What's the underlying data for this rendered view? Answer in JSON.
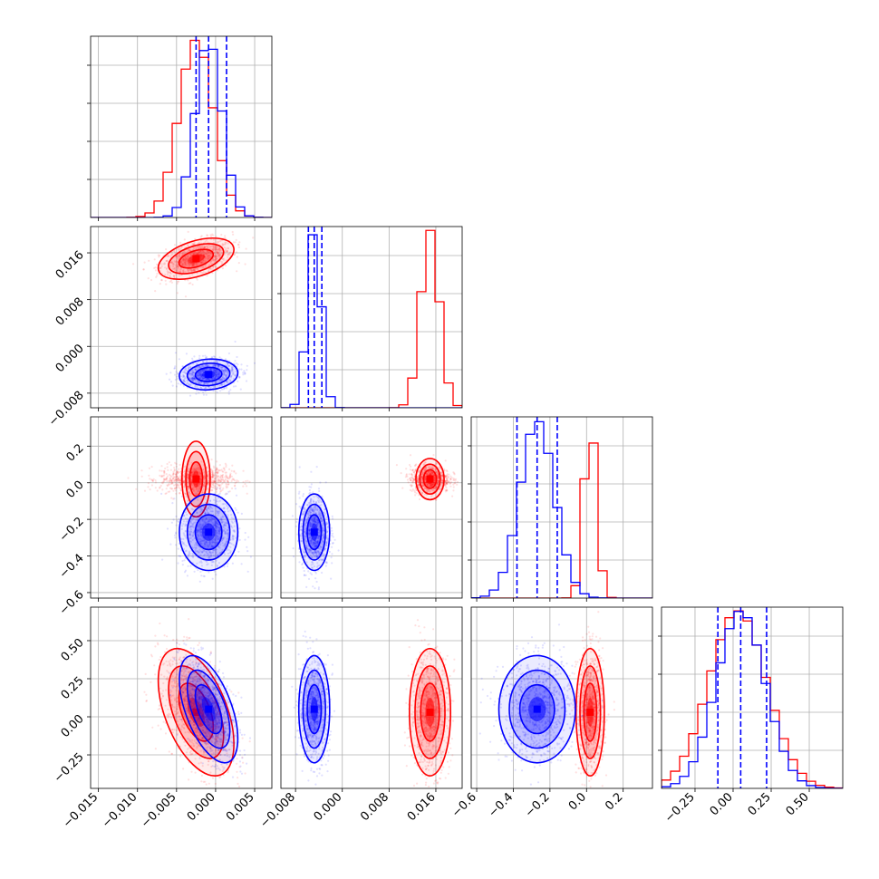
{
  "chart_data": {
    "type": "corner",
    "grid": true,
    "parameters": [
      {
        "range": [
          -0.016,
          0.0072
        ],
        "ticks": [
          -0.015,
          -0.01,
          -0.005,
          0.0,
          0.005
        ],
        "tick_labels": [
          "−0.015",
          "−0.010",
          "−0.005",
          "0.000",
          "0.005"
        ]
      },
      {
        "range": [
          -0.0105,
          0.0205
        ],
        "ticks": [
          -0.008,
          0.0,
          0.008,
          0.016
        ],
        "tick_labels": [
          "−0.008",
          "0.000",
          "0.008",
          "0.016"
        ]
      },
      {
        "range": [
          -0.63,
          0.36
        ],
        "ticks": [
          -0.6,
          -0.4,
          -0.2,
          0.0,
          0.2
        ],
        "tick_labels": [
          "−0.6",
          "−0.4",
          "−0.2",
          "0.0",
          "0.2"
        ]
      },
      {
        "range": [
          -0.47,
          0.72
        ],
        "ticks": [
          -0.25,
          0.0,
          0.25,
          0.5
        ],
        "tick_labels": [
          "−0.25",
          "0.00",
          "0.25",
          "0.50"
        ]
      }
    ],
    "series": [
      {
        "color": "#ff0000",
        "means": [
          -0.0025,
          0.015,
          0.02,
          0.03
        ],
        "sigmas": [
          0.0022,
          0.0016,
          0.035,
          0.19
        ],
        "corr": [
          [
            1,
            0.45,
            0,
            -0.5
          ],
          [
            0.45,
            1,
            0,
            0
          ],
          [
            0,
            0,
            1,
            0
          ],
          [
            -0.5,
            0,
            0,
            1
          ]
        ],
        "quantiles": []
      },
      {
        "color": "#0000ff",
        "means": [
          -0.0009,
          -0.0048,
          -0.27,
          0.05
        ],
        "sigmas": [
          0.0017,
          0.0012,
          0.095,
          0.16
        ],
        "corr": [
          [
            1,
            0.1,
            0,
            -0.55
          ],
          [
            0.1,
            1,
            0,
            0
          ],
          [
            0,
            0,
            1,
            0
          ],
          [
            -0.55,
            0,
            0,
            1
          ]
        ],
        "quantiles": [
          [
            -0.0025,
            -0.0009,
            0.0014
          ],
          [
            -0.0058,
            -0.0048,
            -0.0035
          ],
          [
            -0.38,
            -0.27,
            -0.16
          ],
          [
            -0.1,
            0.05,
            0.22
          ]
        ]
      }
    ]
  }
}
